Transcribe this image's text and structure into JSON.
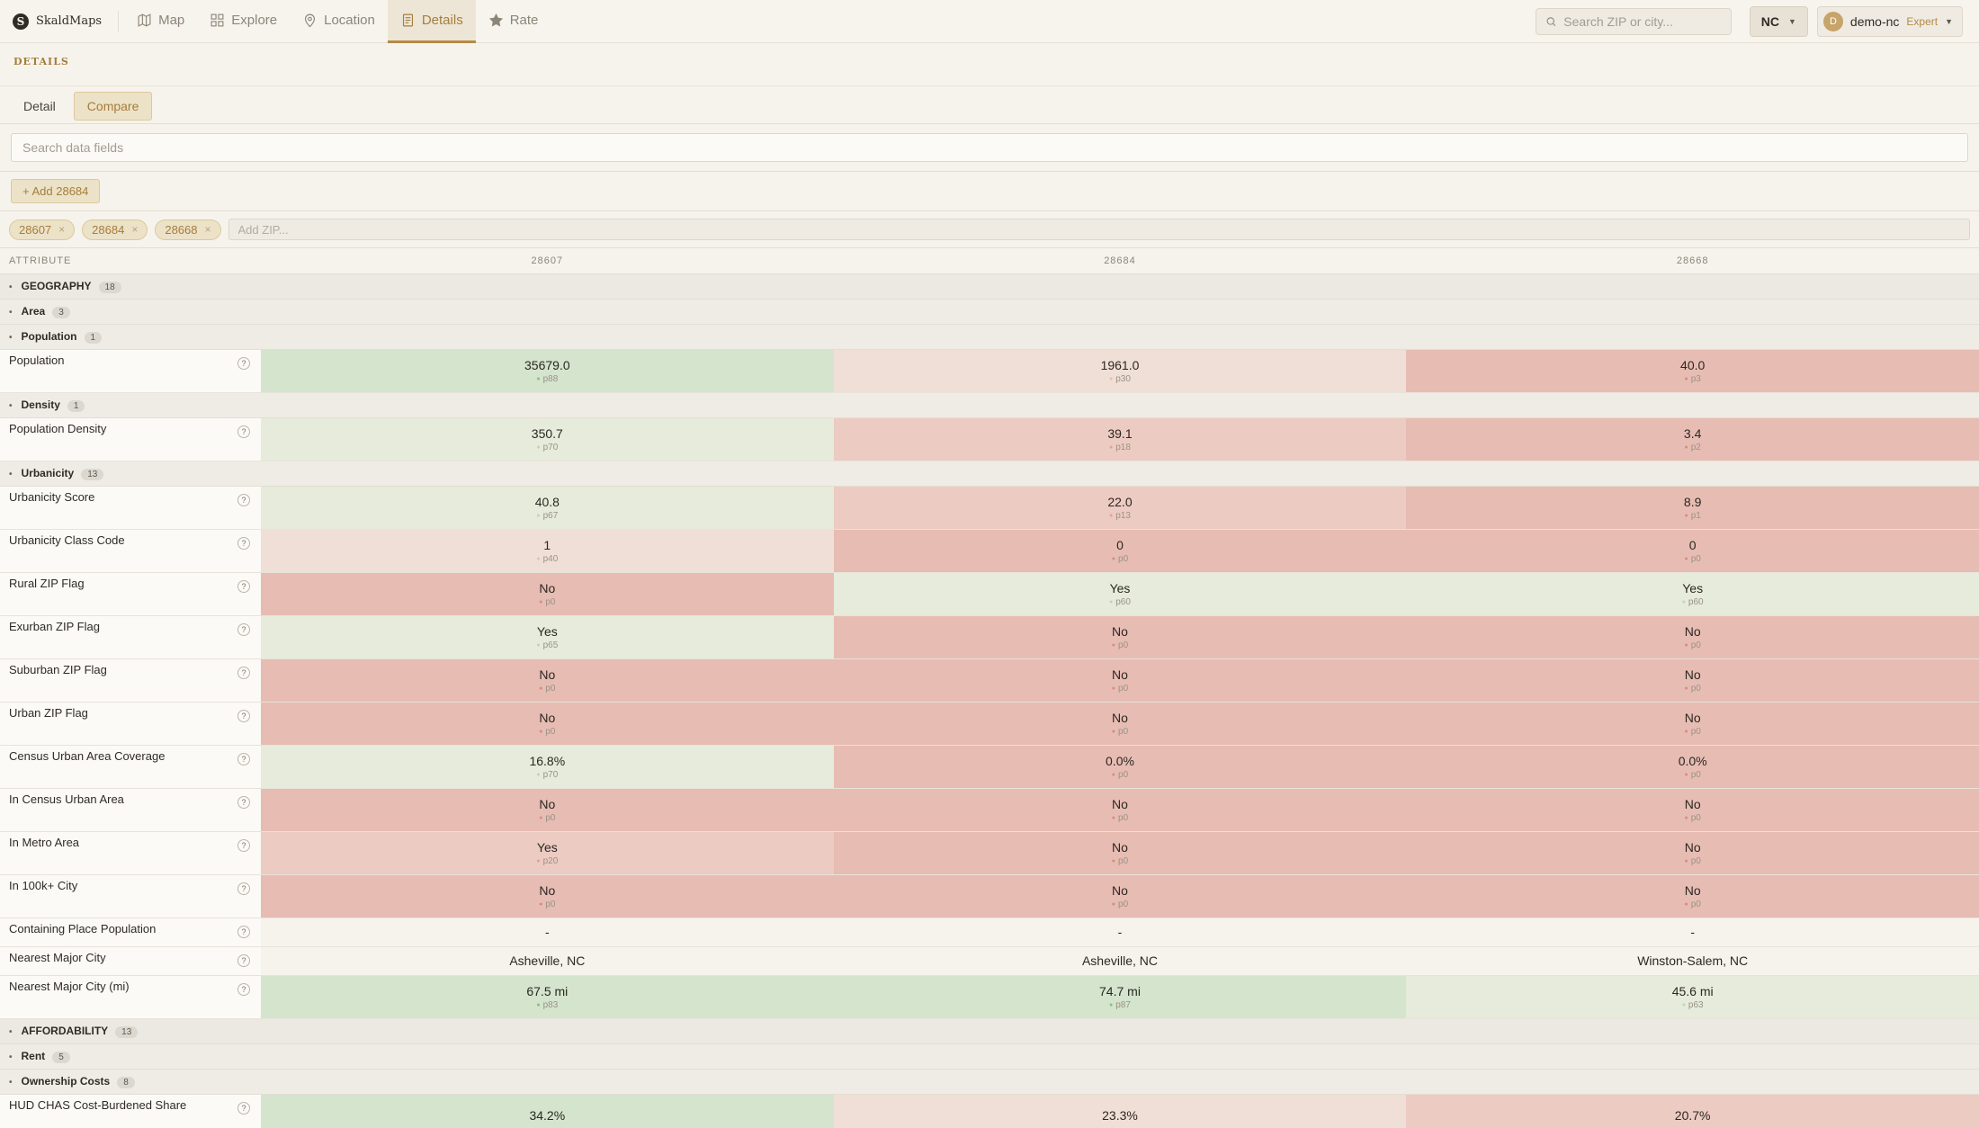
{
  "app": {
    "brand": "SkaldMaps"
  },
  "nav": [
    {
      "label": "Map",
      "icon": "map-icon"
    },
    {
      "label": "Explore",
      "icon": "grid-icon"
    },
    {
      "label": "Location",
      "icon": "pin-icon"
    },
    {
      "label": "Details",
      "icon": "document-icon",
      "active": true
    },
    {
      "label": "Rate",
      "icon": "star-icon"
    }
  ],
  "search": {
    "placeholder": "Search ZIP or city..."
  },
  "state": {
    "value": "NC"
  },
  "user": {
    "initial": "D",
    "name": "demo-nc",
    "tier": "Expert"
  },
  "page": {
    "label": "DETAILS"
  },
  "tabs": {
    "detail": "Detail",
    "compare": "Compare"
  },
  "field_search": {
    "placeholder": "Search data fields"
  },
  "add_button": "+ Add 28684",
  "chips": [
    "28607",
    "28684",
    "28668"
  ],
  "zip_input": {
    "placeholder": "Add ZIP..."
  },
  "table": {
    "attr_header": "ATTRIBUTE",
    "columns": [
      "28607",
      "28684",
      "28668"
    ]
  },
  "rows": [
    {
      "type": "group",
      "label": "GEOGRAPHY",
      "count": "18"
    },
    {
      "type": "subgroup",
      "label": "Area",
      "count": "3"
    },
    {
      "type": "subgroup",
      "label": "Population",
      "count": "1"
    },
    {
      "type": "data",
      "label": "Population",
      "cells": [
        {
          "v": "35679.0",
          "p": "p88",
          "c": "green"
        },
        {
          "v": "1961.0",
          "p": "p30",
          "c": "lightpink"
        },
        {
          "v": "40.0",
          "p": "p3",
          "c": "red"
        }
      ]
    },
    {
      "type": "subgroup",
      "label": "Density",
      "count": "1"
    },
    {
      "type": "data",
      "label": "Population Density",
      "cells": [
        {
          "v": "350.7",
          "p": "p70",
          "c": "lightgreen"
        },
        {
          "v": "39.1",
          "p": "p18",
          "c": "pink"
        },
        {
          "v": "3.4",
          "p": "p2",
          "c": "red"
        }
      ]
    },
    {
      "type": "subgroup",
      "label": "Urbanicity",
      "count": "13"
    },
    {
      "type": "data",
      "label": "Urbanicity Score",
      "cells": [
        {
          "v": "40.8",
          "p": "p67",
          "c": "lightgreen"
        },
        {
          "v": "22.0",
          "p": "p13",
          "c": "pink"
        },
        {
          "v": "8.9",
          "p": "p1",
          "c": "red"
        }
      ]
    },
    {
      "type": "data",
      "label": "Urbanicity Class Code",
      "cells": [
        {
          "v": "1",
          "p": "p40",
          "c": "lightpink"
        },
        {
          "v": "0",
          "p": "p0",
          "c": "red"
        },
        {
          "v": "0",
          "p": "p0",
          "c": "red"
        }
      ]
    },
    {
      "type": "data",
      "label": "Rural ZIP Flag",
      "cells": [
        {
          "v": "No",
          "p": "p0",
          "c": "red"
        },
        {
          "v": "Yes",
          "p": "p60",
          "c": "lightgreen"
        },
        {
          "v": "Yes",
          "p": "p60",
          "c": "lightgreen"
        }
      ]
    },
    {
      "type": "data",
      "label": "Exurban ZIP Flag",
      "cells": [
        {
          "v": "Yes",
          "p": "p65",
          "c": "lightgreen"
        },
        {
          "v": "No",
          "p": "p0",
          "c": "red"
        },
        {
          "v": "No",
          "p": "p0",
          "c": "red"
        }
      ]
    },
    {
      "type": "data",
      "label": "Suburban ZIP Flag",
      "cells": [
        {
          "v": "No",
          "p": "p0",
          "c": "red"
        },
        {
          "v": "No",
          "p": "p0",
          "c": "red"
        },
        {
          "v": "No",
          "p": "p0",
          "c": "red"
        }
      ]
    },
    {
      "type": "data",
      "label": "Urban ZIP Flag",
      "cells": [
        {
          "v": "No",
          "p": "p0",
          "c": "red"
        },
        {
          "v": "No",
          "p": "p0",
          "c": "red"
        },
        {
          "v": "No",
          "p": "p0",
          "c": "red"
        }
      ]
    },
    {
      "type": "data",
      "label": "Census Urban Area Coverage",
      "cells": [
        {
          "v": "16.8%",
          "p": "p70",
          "c": "lightgreen"
        },
        {
          "v": "0.0%",
          "p": "p0",
          "c": "red"
        },
        {
          "v": "0.0%",
          "p": "p0",
          "c": "red"
        }
      ]
    },
    {
      "type": "data",
      "label": "In Census Urban Area",
      "cells": [
        {
          "v": "No",
          "p": "p0",
          "c": "red"
        },
        {
          "v": "No",
          "p": "p0",
          "c": "red"
        },
        {
          "v": "No",
          "p": "p0",
          "c": "red"
        }
      ]
    },
    {
      "type": "data",
      "label": "In Metro Area",
      "cells": [
        {
          "v": "Yes",
          "p": "p20",
          "c": "pink"
        },
        {
          "v": "No",
          "p": "p0",
          "c": "red"
        },
        {
          "v": "No",
          "p": "p0",
          "c": "red"
        }
      ]
    },
    {
      "type": "data",
      "label": "In 100k+ City",
      "cells": [
        {
          "v": "No",
          "p": "p0",
          "c": "red"
        },
        {
          "v": "No",
          "p": "p0",
          "c": "red"
        },
        {
          "v": "No",
          "p": "p0",
          "c": "red"
        }
      ]
    },
    {
      "type": "data",
      "tight": true,
      "label": "Containing Place Population",
      "cells": [
        {
          "v": "-",
          "c": "plain"
        },
        {
          "v": "-",
          "c": "plain"
        },
        {
          "v": "-",
          "c": "plain"
        }
      ]
    },
    {
      "type": "data",
      "tight": true,
      "label": "Nearest Major City",
      "cells": [
        {
          "v": "Asheville, NC",
          "c": "plain"
        },
        {
          "v": "Asheville, NC",
          "c": "plain"
        },
        {
          "v": "Winston-Salem, NC",
          "c": "plain"
        }
      ]
    },
    {
      "type": "data",
      "label": "Nearest Major City (mi)",
      "cells": [
        {
          "v": "67.5 mi",
          "p": "p83",
          "c": "green"
        },
        {
          "v": "74.7 mi",
          "p": "p87",
          "c": "green"
        },
        {
          "v": "45.6 mi",
          "p": "p63",
          "c": "lightgreen"
        }
      ]
    },
    {
      "type": "group",
      "label": "AFFORDABILITY",
      "count": "13"
    },
    {
      "type": "subgroup",
      "label": "Rent",
      "count": "5"
    },
    {
      "type": "subgroup",
      "label": "Ownership Costs",
      "count": "8"
    },
    {
      "type": "data",
      "label": "HUD CHAS Cost-Burdened Share",
      "cells": [
        {
          "v": "34.2%",
          "p": "",
          "c": "green"
        },
        {
          "v": "23.3%",
          "p": "",
          "c": "lightpink"
        },
        {
          "v": "20.7%",
          "p": "",
          "c": "pink"
        }
      ]
    }
  ]
}
